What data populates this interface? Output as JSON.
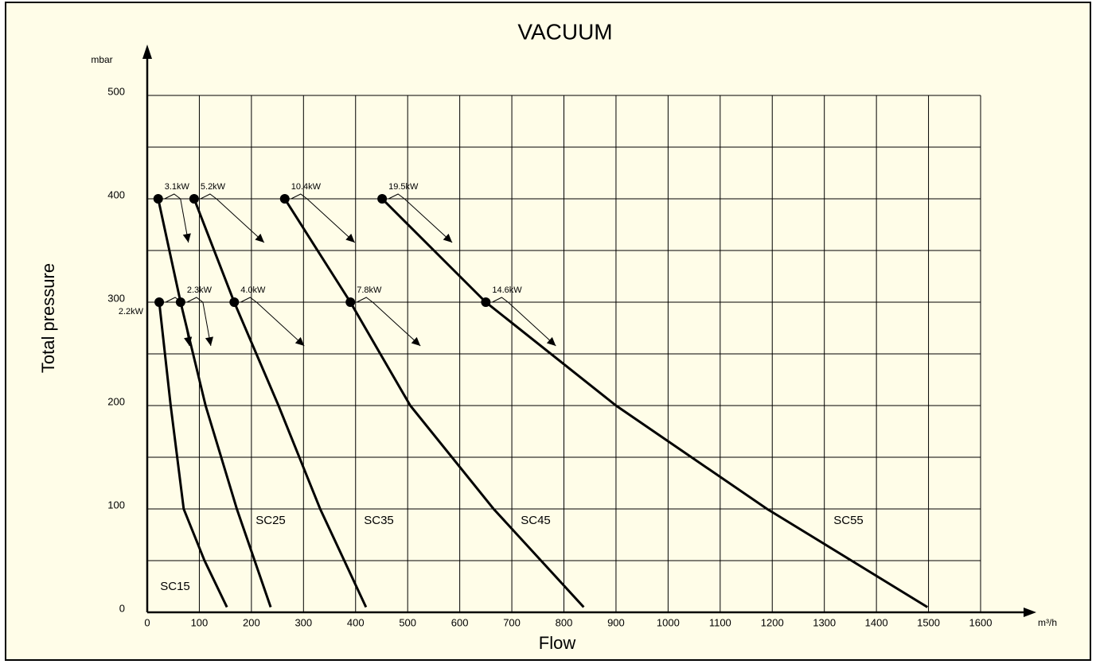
{
  "chart_data": {
    "type": "line",
    "title": "VACUUM",
    "x_label": "Flow",
    "y_label": "Total pressure",
    "x_unit": "m³/h",
    "y_unit": "mbar",
    "xlim": [
      0,
      1600
    ],
    "ylim": [
      0,
      500
    ],
    "xticks": [
      0,
      100,
      200,
      300,
      400,
      500,
      600,
      700,
      800,
      900,
      1000,
      1100,
      1200,
      1300,
      1400,
      1500,
      1600
    ],
    "yticks": [
      0,
      100,
      200,
      300,
      400,
      500
    ],
    "y_minor_ticks": [
      50,
      150,
      250,
      350,
      450
    ],
    "grid": true,
    "color": "#000000",
    "series": [
      {
        "name": "SC15",
        "x": [
          23,
          45,
          70,
          110,
          153
        ],
        "values": [
          300,
          200,
          100,
          50,
          5
        ],
        "points": [
          {
            "x": 23,
            "y": 300,
            "label": "2.2kW"
          }
        ]
      },
      {
        "name": "SC25",
        "x": [
          21,
          64,
          112,
          172,
          237
        ],
        "values": [
          400,
          300,
          200,
          100,
          5
        ],
        "points": [
          {
            "x": 21,
            "y": 400,
            "label": "3.1kW"
          },
          {
            "x": 64,
            "y": 300,
            "label": "2.3kW"
          }
        ]
      },
      {
        "name": "SC35",
        "x": [
          90,
          167,
          252,
          332,
          420
        ],
        "values": [
          400,
          300,
          200,
          100,
          5
        ],
        "points": [
          {
            "x": 90,
            "y": 400,
            "label": "5.2kW"
          },
          {
            "x": 167,
            "y": 300,
            "label": "4.0kW"
          }
        ]
      },
      {
        "name": "SC45",
        "x": [
          264,
          390,
          505,
          665,
          838
        ],
        "values": [
          400,
          300,
          200,
          100,
          5
        ],
        "points": [
          {
            "x": 264,
            "y": 400,
            "label": "10.4kW"
          },
          {
            "x": 390,
            "y": 300,
            "label": "7.8kW"
          }
        ]
      },
      {
        "name": "SC55",
        "x": [
          451,
          650,
          900,
          1190,
          1498
        ],
        "values": [
          400,
          300,
          200,
          100,
          5
        ],
        "points": [
          {
            "x": 451,
            "y": 400,
            "label": "19.5kW"
          },
          {
            "x": 650,
            "y": 300,
            "label": "14.6kW"
          }
        ]
      }
    ]
  }
}
